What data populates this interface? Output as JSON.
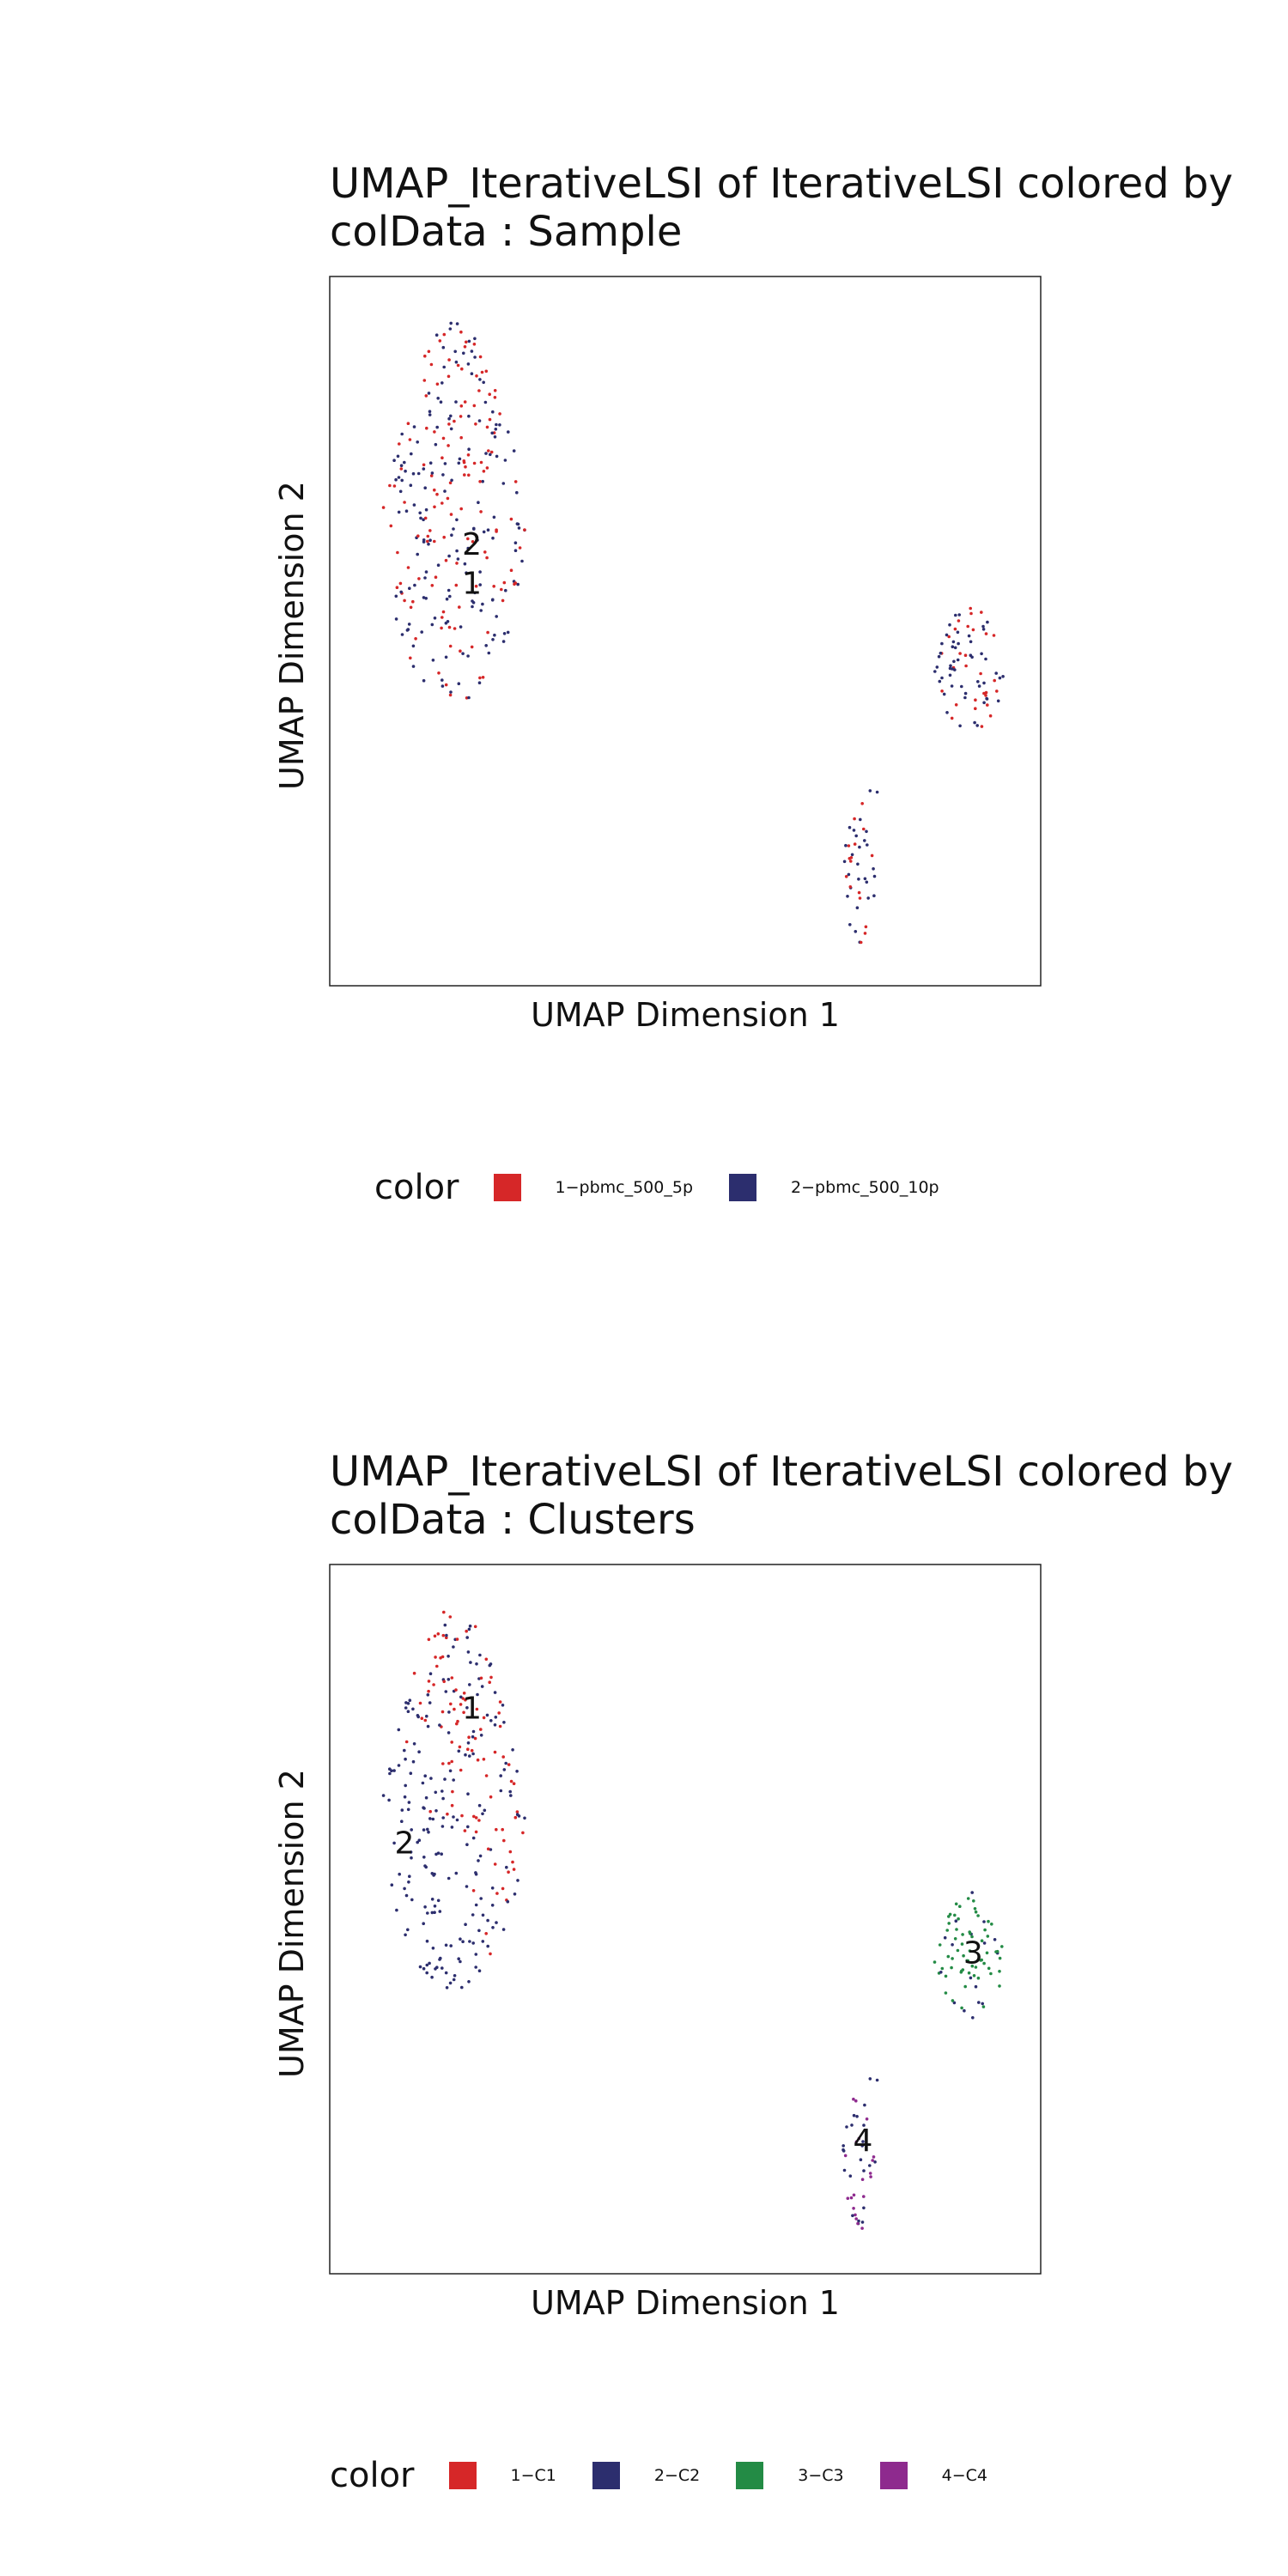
{
  "chart_data": [
    {
      "type": "scatter",
      "title_lines": [
        "UMAP_IterativeLSI of IterativeLSI  colored by",
        "colData :  Sample"
      ],
      "xlabel": "UMAP Dimension 1",
      "ylabel": "UMAP Dimension 2",
      "xlim": [
        0,
        100
      ],
      "ylim": [
        0,
        100
      ],
      "grid": false,
      "legend_title": "color",
      "legend_position": "bottom",
      "series": [
        {
          "name": "1−pbmc_500_5p",
          "color": "#d62728"
        },
        {
          "name": "2−pbmc_500_10p",
          "color": "#2c2e6e"
        }
      ],
      "clusters": [
        {
          "name": "A",
          "cx": 17.5,
          "cy": 67,
          "rx": 10,
          "ry": 27,
          "n": 300,
          "mix": [
            0.45,
            0.55
          ]
        },
        {
          "name": "B",
          "cx": 90,
          "cy": 45,
          "rx": 5,
          "ry": 9,
          "n": 80,
          "mix": [
            0.35,
            0.65
          ]
        },
        {
          "name": "C",
          "cx": 74.5,
          "cy": 16,
          "rx": 2.5,
          "ry": 10,
          "n": 42,
          "mix": [
            0.4,
            0.6
          ]
        }
      ],
      "centroid_labels": [
        {
          "text": "2",
          "x": 20,
          "y": 62
        },
        {
          "text": "1",
          "x": 20,
          "y": 56.5
        }
      ]
    },
    {
      "type": "scatter",
      "title_lines": [
        "UMAP_IterativeLSI of IterativeLSI  colored by",
        "colData :  Clusters"
      ],
      "xlabel": "UMAP Dimension 1",
      "ylabel": "UMAP Dimension 2",
      "xlim": [
        0,
        100
      ],
      "ylim": [
        0,
        100
      ],
      "grid": false,
      "legend_title": "color",
      "legend_position": "bottom",
      "series": [
        {
          "name": "1−C1",
          "color": "#d62728"
        },
        {
          "name": "2−C2",
          "color": "#2c2e6e"
        },
        {
          "name": "3−C3",
          "color": "#238b45"
        },
        {
          "name": "4−C4",
          "color": "#8e2a8e"
        }
      ],
      "clusters": [
        {
          "name": "A",
          "cx": 17.5,
          "cy": 67,
          "rx": 10,
          "ry": 27,
          "n": 300,
          "split": true
        },
        {
          "name": "B",
          "cx": 90,
          "cy": 45,
          "rx": 5,
          "ry": 9,
          "n": 80,
          "series_index": 2,
          "mix_dark": 0.2
        },
        {
          "name": "C",
          "cx": 74.5,
          "cy": 16,
          "rx": 2.5,
          "ry": 10,
          "n": 42,
          "series_index": 3,
          "mix_dark": 0.45
        }
      ],
      "centroid_labels": [
        {
          "text": "1",
          "x": 20,
          "y": 79.5
        },
        {
          "text": "2",
          "x": 10.5,
          "y": 60.5
        },
        {
          "text": "3",
          "x": 90.5,
          "y": 45
        },
        {
          "text": "4",
          "x": 75,
          "y": 18.5
        }
      ]
    }
  ]
}
